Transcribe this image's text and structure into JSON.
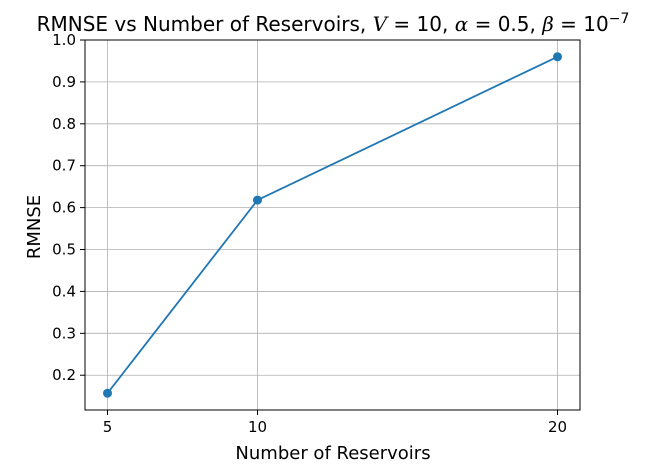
{
  "chart_data": {
    "type": "line",
    "title": {
      "prefix": "RMNSE vs Number of Reservoirs, ",
      "v_symbol": "V",
      "v_value": " = 10, ",
      "alpha_symbol": "α",
      "alpha_value": " = 0.5, ",
      "beta_symbol": "β",
      "beta_value": " = 10",
      "beta_exponent": "−7"
    },
    "xlabel": "Number of Reservoirs",
    "ylabel": "RMNSE",
    "x": [
      5,
      10,
      20
    ],
    "series": [
      {
        "values": [
          0.157,
          0.618,
          0.96
        ],
        "color": "#1f77b4",
        "marker": "circle"
      }
    ],
    "xticks": [
      5,
      10,
      20
    ],
    "xtick_labels": [
      "5",
      "10",
      "20"
    ],
    "yticks": [
      0.2,
      0.3,
      0.4,
      0.5,
      0.6,
      0.7,
      0.8,
      0.9,
      1.0
    ],
    "ytick_labels": [
      "0.2",
      "0.3",
      "0.4",
      "0.5",
      "0.6",
      "0.7",
      "0.8",
      "0.9",
      "1.0"
    ],
    "xlim": [
      4.25,
      20.75
    ],
    "ylim": [
      0.117,
      1.0
    ],
    "grid": true
  }
}
